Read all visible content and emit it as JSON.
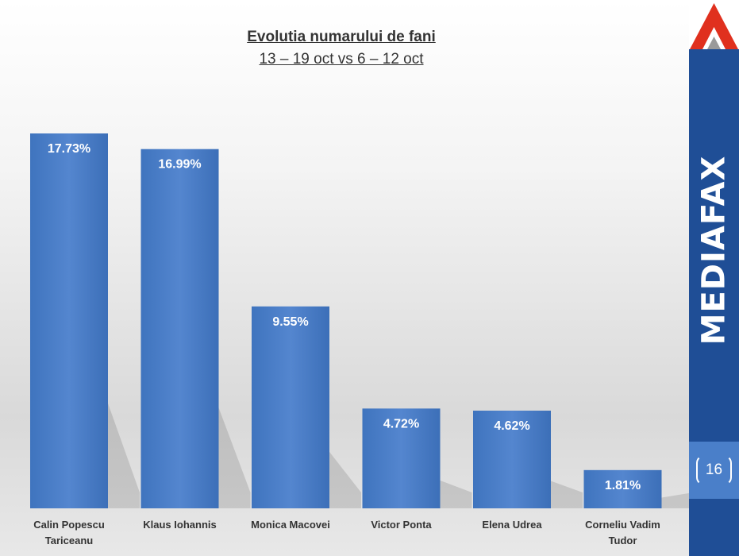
{
  "slide": {
    "title_line1": "Evolutia numarului de fani",
    "title_line2": "13 – 19 oct vs 6 – 12 oct",
    "brand": "MEDIAFAX",
    "page_number": "16"
  },
  "colors": {
    "bar": "#4a7fc9",
    "sidebar": "#1f4e96",
    "logo_red": "#e0301e"
  },
  "chart_data": {
    "type": "bar",
    "title": "Evolutia numarului de fani",
    "subtitle": "13 – 19 oct vs 6 – 12 oct",
    "categories": [
      [
        "Calin Popescu",
        "Tariceanu"
      ],
      [
        "Klaus Iohannis"
      ],
      [
        "Monica Macovei"
      ],
      [
        "Victor Ponta"
      ],
      [
        "Elena Udrea"
      ],
      [
        "Corneliu Vadim",
        "Tudor"
      ]
    ],
    "values": [
      17.73,
      16.99,
      9.55,
      4.72,
      4.62,
      1.81
    ],
    "data_labels": [
      "17.73%",
      "16.99%",
      "9.55%",
      "4.72%",
      "4.62%",
      "1.81%"
    ],
    "ylim": [
      0,
      17.73
    ],
    "grid": false,
    "legend": "none"
  }
}
